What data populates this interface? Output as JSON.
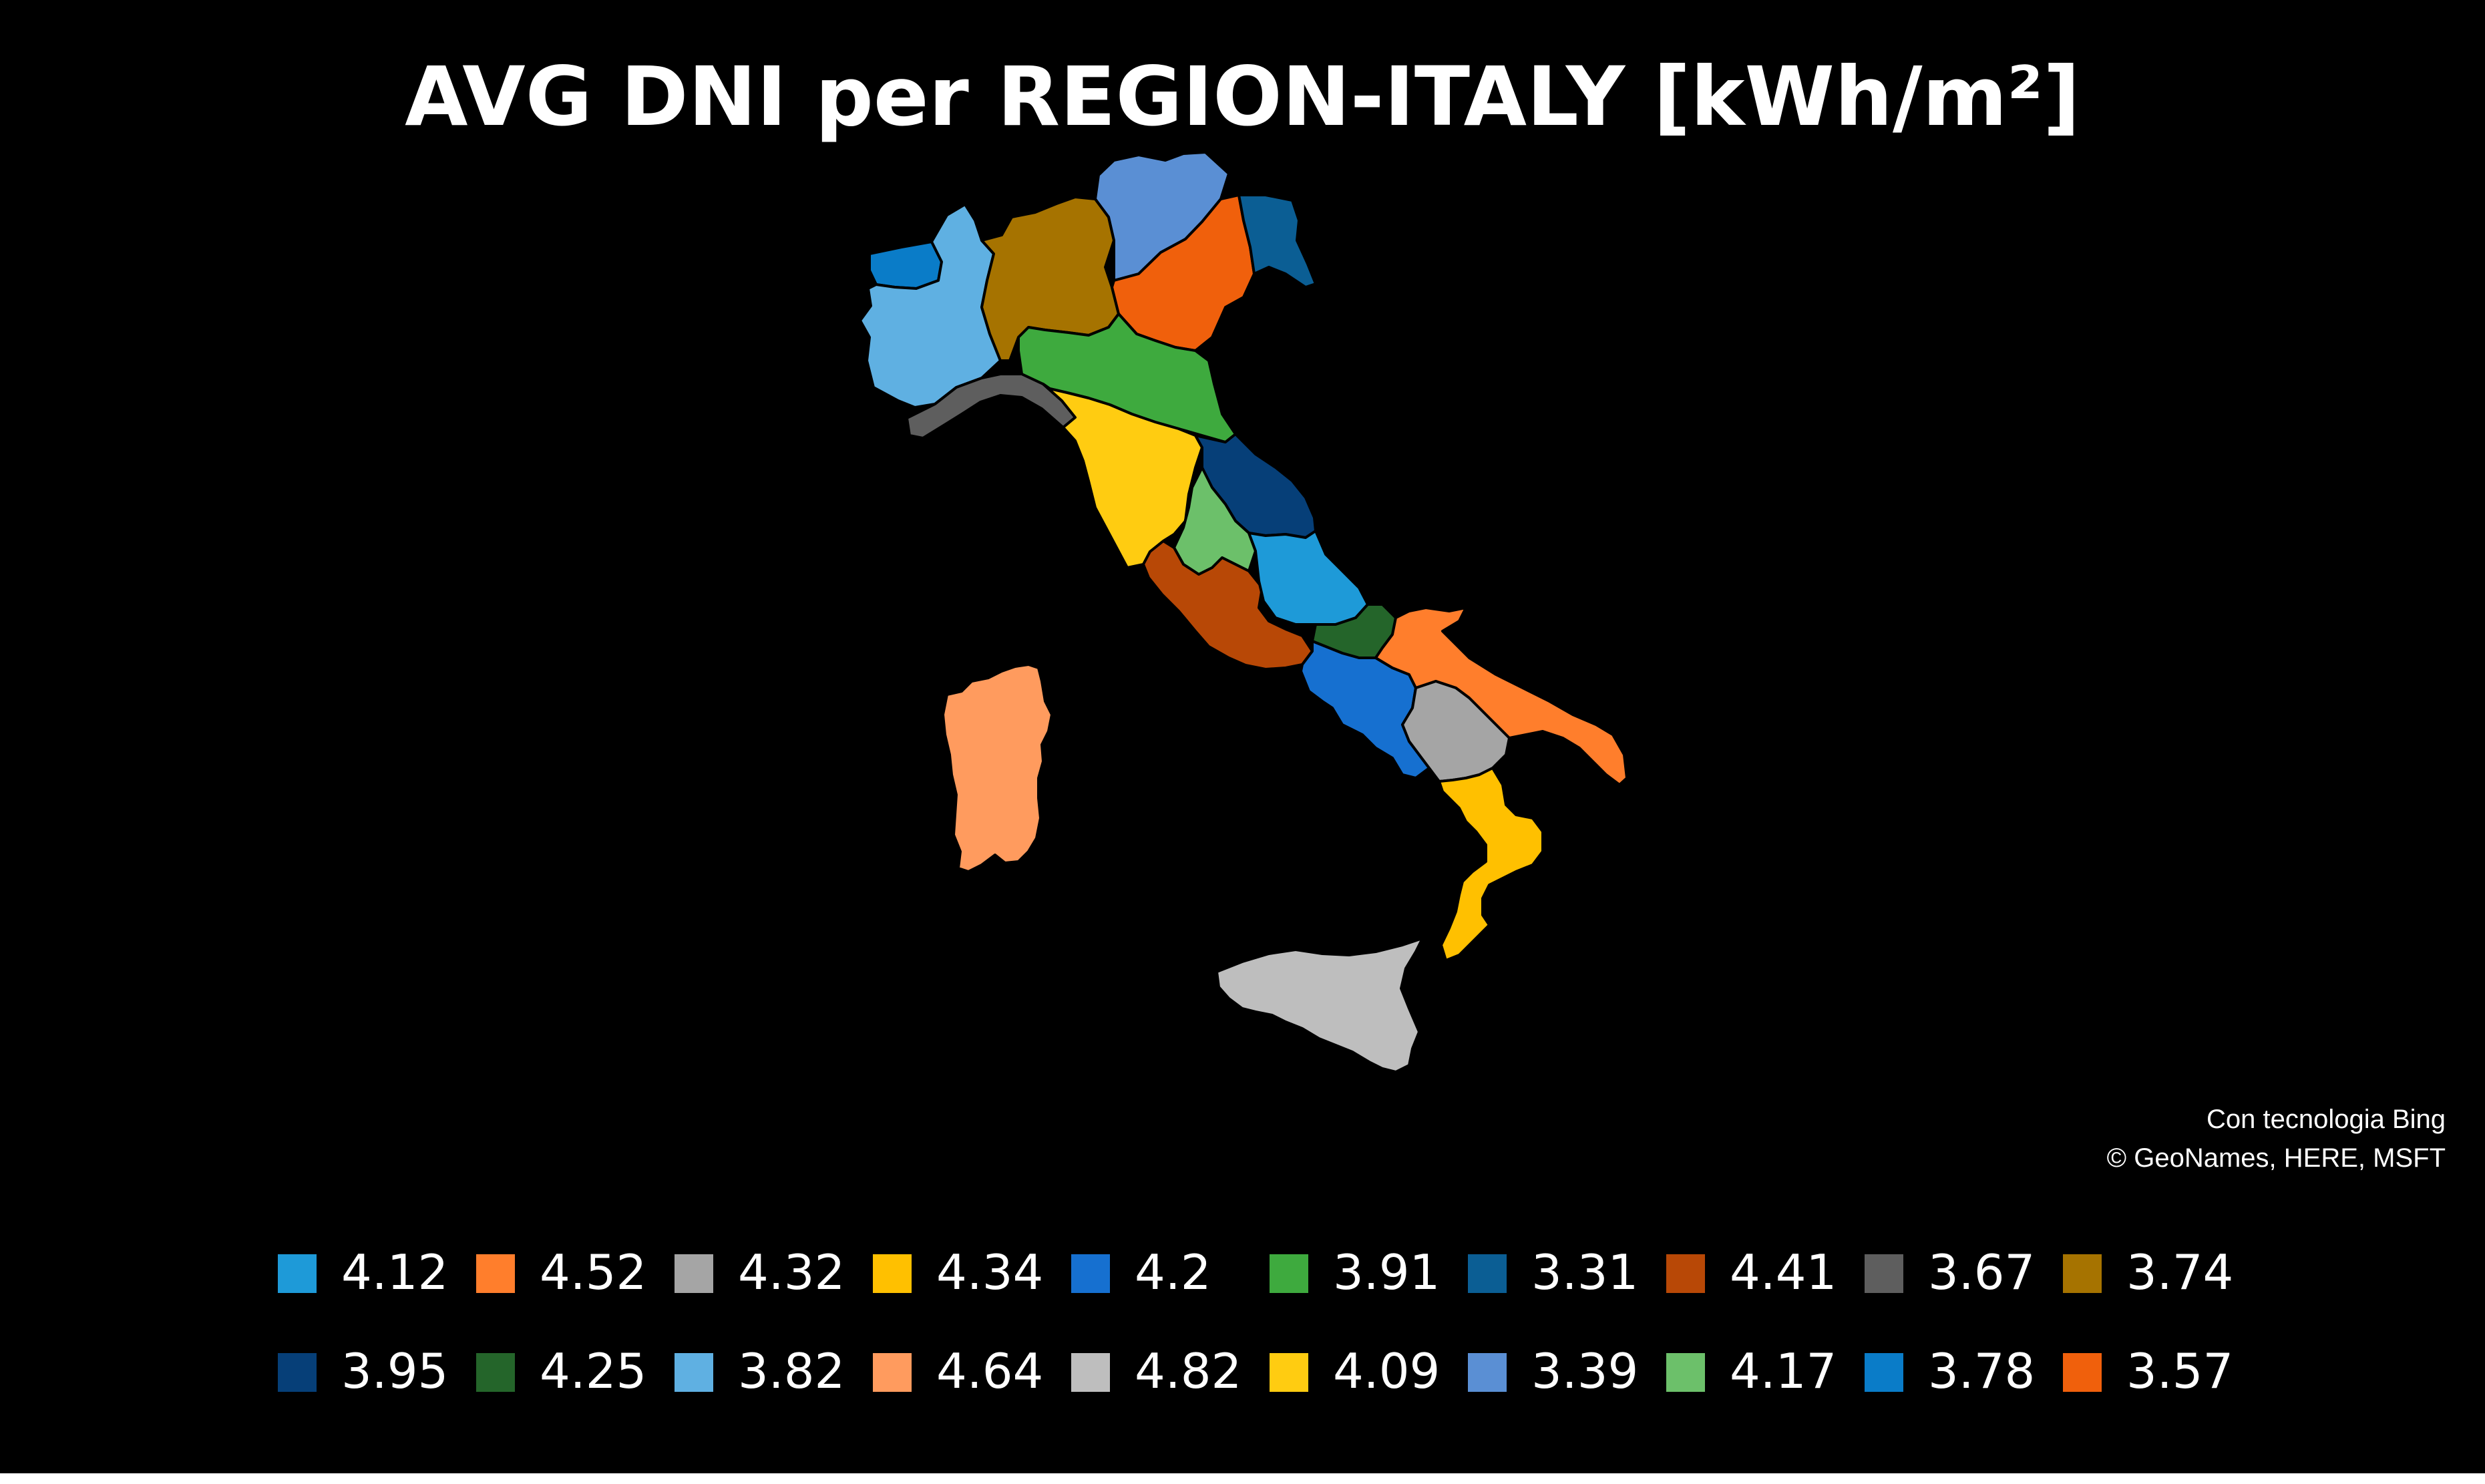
{
  "title": "AVG DNI per REGION-ITALY [kWh/m²]",
  "attribution": {
    "line1": "Con tecnologia Bing",
    "line2": "© GeoNames, HERE, MSFT"
  },
  "regions": [
    {
      "value": "3.78",
      "color": "#0A7CC8"
    },
    {
      "value": "3.82",
      "color": "#5FB0E2"
    },
    {
      "value": "3.67",
      "color": "#5E5E5E"
    },
    {
      "value": "3.74",
      "color": "#A67300"
    },
    {
      "value": "3.39",
      "color": "#5A8FD4"
    },
    {
      "value": "3.57",
      "color": "#F0600C"
    },
    {
      "value": "3.31",
      "color": "#0B5E94"
    },
    {
      "value": "3.91",
      "color": "#3EAA3E"
    },
    {
      "value": "4.09",
      "color": "#FFCC11"
    },
    {
      "value": "3.95",
      "color": "#063F78"
    },
    {
      "value": "4.17",
      "color": "#6CC06A"
    },
    {
      "value": "4.41",
      "color": "#B84806"
    },
    {
      "value": "4.12",
      "color": "#1E9AD8"
    },
    {
      "value": "4.25",
      "color": "#24652A"
    },
    {
      "value": "4.2",
      "color": "#1670D0"
    },
    {
      "value": "4.52",
      "color": "#FF7E2C"
    },
    {
      "value": "4.32",
      "color": "#A5A5A5"
    },
    {
      "value": "4.34",
      "color": "#FFC000"
    },
    {
      "value": "4.64",
      "color": "#FF9B5E"
    },
    {
      "value": "4.82",
      "color": "#BEBEBE"
    }
  ],
  "legend": {
    "rows": [
      [
        {
          "value": "4.12",
          "color": "#1E9AD8"
        },
        {
          "value": "4.52",
          "color": "#FF7E2C"
        },
        {
          "value": "4.32",
          "color": "#A5A5A5"
        },
        {
          "value": "4.34",
          "color": "#FFC000"
        },
        {
          "value": "4.2",
          "color": "#1670D0"
        },
        {
          "value": "3.91",
          "color": "#3EAA3E"
        },
        {
          "value": "3.31",
          "color": "#0B5E94"
        },
        {
          "value": "4.41",
          "color": "#B84806"
        },
        {
          "value": "3.67",
          "color": "#5E5E5E"
        },
        {
          "value": "3.74",
          "color": "#A67300"
        }
      ],
      [
        {
          "value": "3.95",
          "color": "#063F78"
        },
        {
          "value": "4.25",
          "color": "#24652A"
        },
        {
          "value": "3.82",
          "color": "#5FB0E2"
        },
        {
          "value": "4.64",
          "color": "#FF9B5E"
        },
        {
          "value": "4.82",
          "color": "#BEBEBE"
        },
        {
          "value": "4.09",
          "color": "#FFCC11"
        },
        {
          "value": "3.39",
          "color": "#5A8FD4"
        },
        {
          "value": "4.17",
          "color": "#6CC06A"
        },
        {
          "value": "3.78",
          "color": "#0A7CC8"
        },
        {
          "value": "3.57",
          "color": "#F0600C"
        }
      ]
    ]
  }
}
